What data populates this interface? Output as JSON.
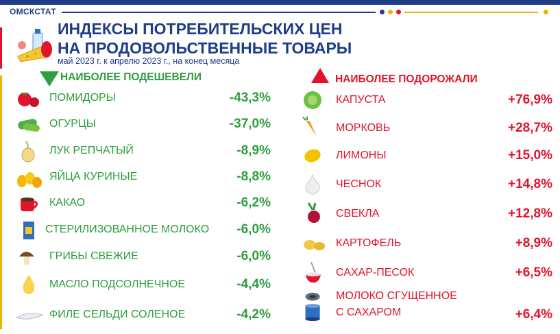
{
  "header": {
    "brand": "ОМСКСТАТ",
    "title_line1": "ИНДЕКСЫ ПОТРЕБИТЕЛЬСКИХ ЦЕН",
    "title_line2": "НА ПРОДОВОЛЬСТВЕННЫЕ ТОВАРЫ",
    "subtitle": "май 2023 г. к апрелю 2023 г., на конец месяца"
  },
  "colors": {
    "brand_blue": "#1f3c88",
    "decrease_green": "#2e9e3e",
    "increase_red": "#e2142d",
    "accent_yellow": "#f0b400"
  },
  "cheaper": {
    "heading": "НАИБОЛЕЕ ПОДЕШЕВЕЛИ",
    "items": [
      {
        "name": "ПОМИДОРЫ",
        "value": "-43,3%",
        "icon": "tomato-icon"
      },
      {
        "name": "ОГУРЦЫ",
        "value": "-37,0%",
        "icon": "cucumber-icon"
      },
      {
        "name": "ЛУК РЕПЧАТЫЙ",
        "value": "-8,9%",
        "icon": "onion-icon"
      },
      {
        "name": "ЯЙЦА КУРИНЫЕ",
        "value": "-8,8%",
        "icon": "eggs-icon"
      },
      {
        "name": "КАКАО",
        "value": "-6,2%",
        "icon": "cocoa-icon"
      },
      {
        "name": "СТЕРИЛИЗОВАННОЕ МОЛОКО",
        "value": "-6,0%",
        "icon": "milk-carton-icon"
      },
      {
        "name": "ГРИБЫ СВЕЖИЕ",
        "value": "-6,0%",
        "icon": "mushroom-icon"
      },
      {
        "name": "МАСЛО ПОДСОЛНЕЧНОЕ",
        "value": "-4,4%",
        "icon": "oil-drop-icon"
      },
      {
        "name": "ФИЛЕ СЕЛЬДИ СОЛЕНОЕ",
        "value": "-4,2%",
        "icon": "herring-fillet-icon"
      }
    ]
  },
  "pricier": {
    "heading": "НАИБОЛЕЕ ПОДОРОЖАЛИ",
    "items": [
      {
        "name": "КАПУСТА",
        "value": "+76,9%",
        "icon": "cabbage-icon"
      },
      {
        "name": "МОРКОВЬ",
        "value": "+28,7%",
        "icon": "carrot-icon"
      },
      {
        "name": "ЛИМОНЫ",
        "value": "+15,0%",
        "icon": "lemon-icon"
      },
      {
        "name": "ЧЕСНОК",
        "value": "+14,8%",
        "icon": "garlic-icon"
      },
      {
        "name": "СВЕКЛА",
        "value": "+12,8%",
        "icon": "beet-icon"
      },
      {
        "name": "КАРТОФЕЛЬ",
        "value": "+8,9%",
        "icon": "potato-icon"
      },
      {
        "name": "САХАР-ПЕСОК",
        "value": "+6,5%",
        "icon": "sugar-bowl-icon"
      },
      {
        "name_line1": "МОЛОКО СГУЩЕННОЕ",
        "name_line2": "С САХАРОМ",
        "value": "+6,4%",
        "icon": "condensed-milk-can-icon"
      }
    ]
  }
}
